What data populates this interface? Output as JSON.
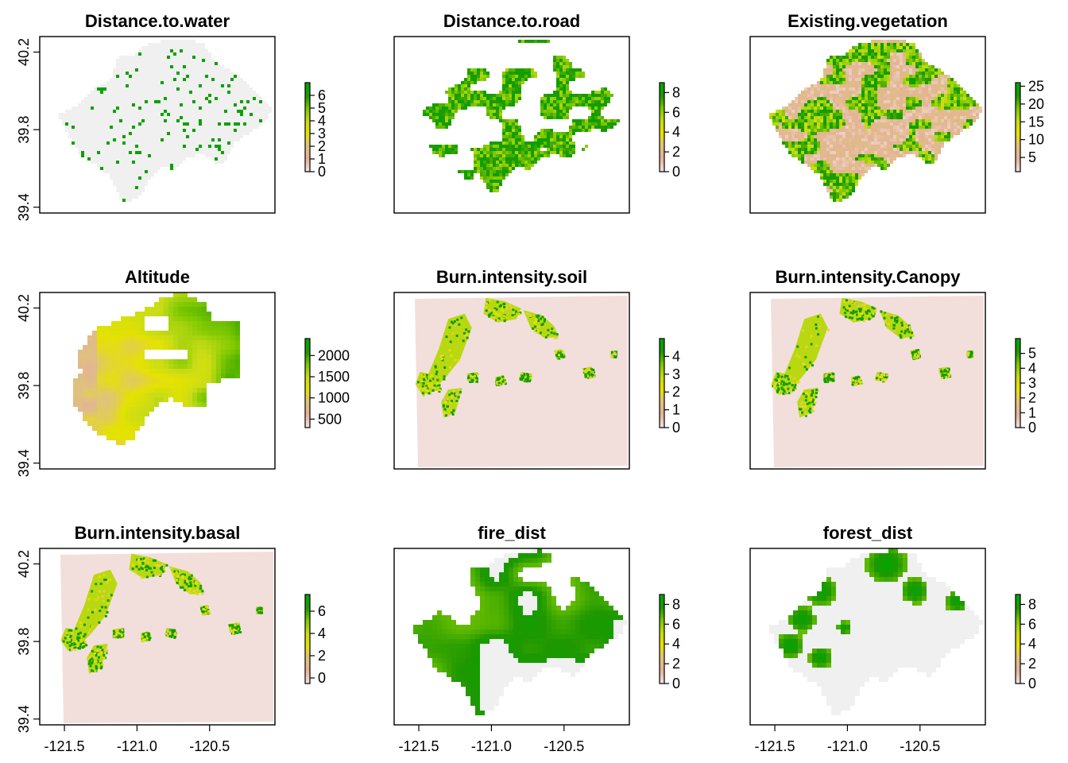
{
  "colors": {
    "frame": "#000000",
    "nodata_gray": "#f0f0f0",
    "burn_background": "#f2dfdc",
    "ramp": [
      "#f2dfdc",
      "#e3b394",
      "#dfc27d",
      "#e6e200",
      "#c8dc17",
      "#7cc800",
      "#1f9800",
      "#00a600"
    ]
  },
  "icons": {
    "colorbar": "terrain-color-ramp-legend"
  },
  "chart_data": [
    {
      "type": "heatmap",
      "title": "Distance.to.water",
      "style": "sparse",
      "xlim": [
        -121.67,
        -120.05
      ],
      "ylim": [
        39.37,
        40.28
      ],
      "yticks": [
        "39.4",
        "39.8",
        "40.2"
      ],
      "ytick_values": [
        39.4,
        39.8,
        40.2
      ],
      "xticks": [],
      "xtick_values": [],
      "legend": {
        "placement": "right",
        "range": [
          0,
          7
        ],
        "labels": [
          "0",
          "1",
          "2",
          "3",
          "4",
          "5",
          "6"
        ],
        "values": [
          0,
          1,
          2,
          3,
          4,
          5,
          6
        ]
      }
    },
    {
      "type": "heatmap",
      "title": "Distance.to.road",
      "style": "mesh",
      "xlim": [
        -121.67,
        -120.05
      ],
      "ylim": [
        39.37,
        40.28
      ],
      "yticks": [],
      "ytick_values": [],
      "xticks": [],
      "xtick_values": [],
      "legend": {
        "placement": "right",
        "range": [
          0,
          9
        ],
        "labels": [
          "0",
          "2",
          "4",
          "6",
          "8"
        ],
        "values": [
          0,
          2,
          4,
          6,
          8
        ]
      }
    },
    {
      "type": "heatmap",
      "title": "Existing.vegetation",
      "style": "mixed",
      "xlim": [
        -121.67,
        -120.05
      ],
      "ylim": [
        39.37,
        40.28
      ],
      "yticks": [],
      "ytick_values": [],
      "xticks": [],
      "xtick_values": [],
      "legend": {
        "placement": "right",
        "range": [
          1,
          26
        ],
        "labels": [
          "5",
          "10",
          "15",
          "20",
          "25"
        ],
        "values": [
          5,
          10,
          15,
          20,
          25
        ]
      }
    },
    {
      "type": "heatmap",
      "title": "Altitude",
      "style": "altitude",
      "xlim": [
        -121.67,
        -120.05
      ],
      "ylim": [
        39.37,
        40.28
      ],
      "yticks": [
        "39.4",
        "39.8",
        "40.2"
      ],
      "ytick_values": [
        39.4,
        39.8,
        40.2
      ],
      "xticks": [],
      "xtick_values": [],
      "legend": {
        "placement": "right",
        "range": [
          300,
          2400
        ],
        "labels": [
          "500",
          "1000",
          "1500",
          "2000"
        ],
        "values": [
          500,
          1000,
          1500,
          2000
        ]
      }
    },
    {
      "type": "heatmap",
      "title": "Burn.intensity.soil",
      "style": "burn",
      "xlim": [
        -121.67,
        -120.05
      ],
      "ylim": [
        39.37,
        40.28
      ],
      "yticks": [],
      "ytick_values": [],
      "xticks": [],
      "xtick_values": [],
      "legend": {
        "placement": "right",
        "range": [
          0,
          5
        ],
        "labels": [
          "0",
          "1",
          "2",
          "3",
          "4"
        ],
        "values": [
          0,
          1,
          2,
          3,
          4
        ]
      }
    },
    {
      "type": "heatmap",
      "title": "Burn.intensity.Canopy",
      "style": "burn",
      "xlim": [
        -121.67,
        -120.05
      ],
      "ylim": [
        39.37,
        40.28
      ],
      "yticks": [],
      "ytick_values": [],
      "xticks": [],
      "xtick_values": [],
      "legend": {
        "placement": "right",
        "range": [
          0,
          6
        ],
        "labels": [
          "0",
          "1",
          "2",
          "3",
          "4",
          "5"
        ],
        "values": [
          0,
          1,
          2,
          3,
          4,
          5
        ]
      }
    },
    {
      "type": "heatmap",
      "title": "Burn.intensity.basal",
      "style": "burn",
      "xlim": [
        -121.67,
        -120.05
      ],
      "ylim": [
        39.37,
        40.28
      ],
      "yticks": [
        "39.4",
        "39.8",
        "40.2"
      ],
      "ytick_values": [
        39.4,
        39.8,
        40.2
      ],
      "xticks": [
        "-121.5",
        "-121.0",
        "-120.5"
      ],
      "xtick_values": [
        -121.5,
        -121.0,
        -120.5
      ],
      "legend": {
        "placement": "right",
        "range": [
          -0.5,
          7.5
        ],
        "labels": [
          "0",
          "2",
          "4",
          "6"
        ],
        "values": [
          0,
          2,
          4,
          6
        ]
      }
    },
    {
      "type": "heatmap",
      "title": "fire_dist",
      "style": "fire",
      "xlim": [
        -121.67,
        -120.05
      ],
      "ylim": [
        39.37,
        40.28
      ],
      "yticks": [],
      "ytick_values": [],
      "xticks": [
        "-121.5",
        "-121.0",
        "-120.5"
      ],
      "xtick_values": [
        -121.5,
        -121.0,
        -120.5
      ],
      "legend": {
        "placement": "right",
        "range": [
          0,
          9
        ],
        "labels": [
          "0",
          "2",
          "4",
          "6",
          "8"
        ],
        "values": [
          0,
          2,
          4,
          6,
          8
        ]
      }
    },
    {
      "type": "heatmap",
      "title": "forest_dist",
      "style": "forest",
      "xlim": [
        -121.67,
        -120.05
      ],
      "ylim": [
        39.37,
        40.28
      ],
      "yticks": [],
      "ytick_values": [],
      "xticks": [
        "-121.5",
        "-121.0",
        "-120.5"
      ],
      "xtick_values": [
        -121.5,
        -121.0,
        -120.5
      ],
      "legend": {
        "placement": "right",
        "range": [
          0,
          9
        ],
        "labels": [
          "0",
          "2",
          "4",
          "6",
          "8"
        ],
        "values": [
          0,
          2,
          4,
          6,
          8
        ]
      }
    }
  ]
}
